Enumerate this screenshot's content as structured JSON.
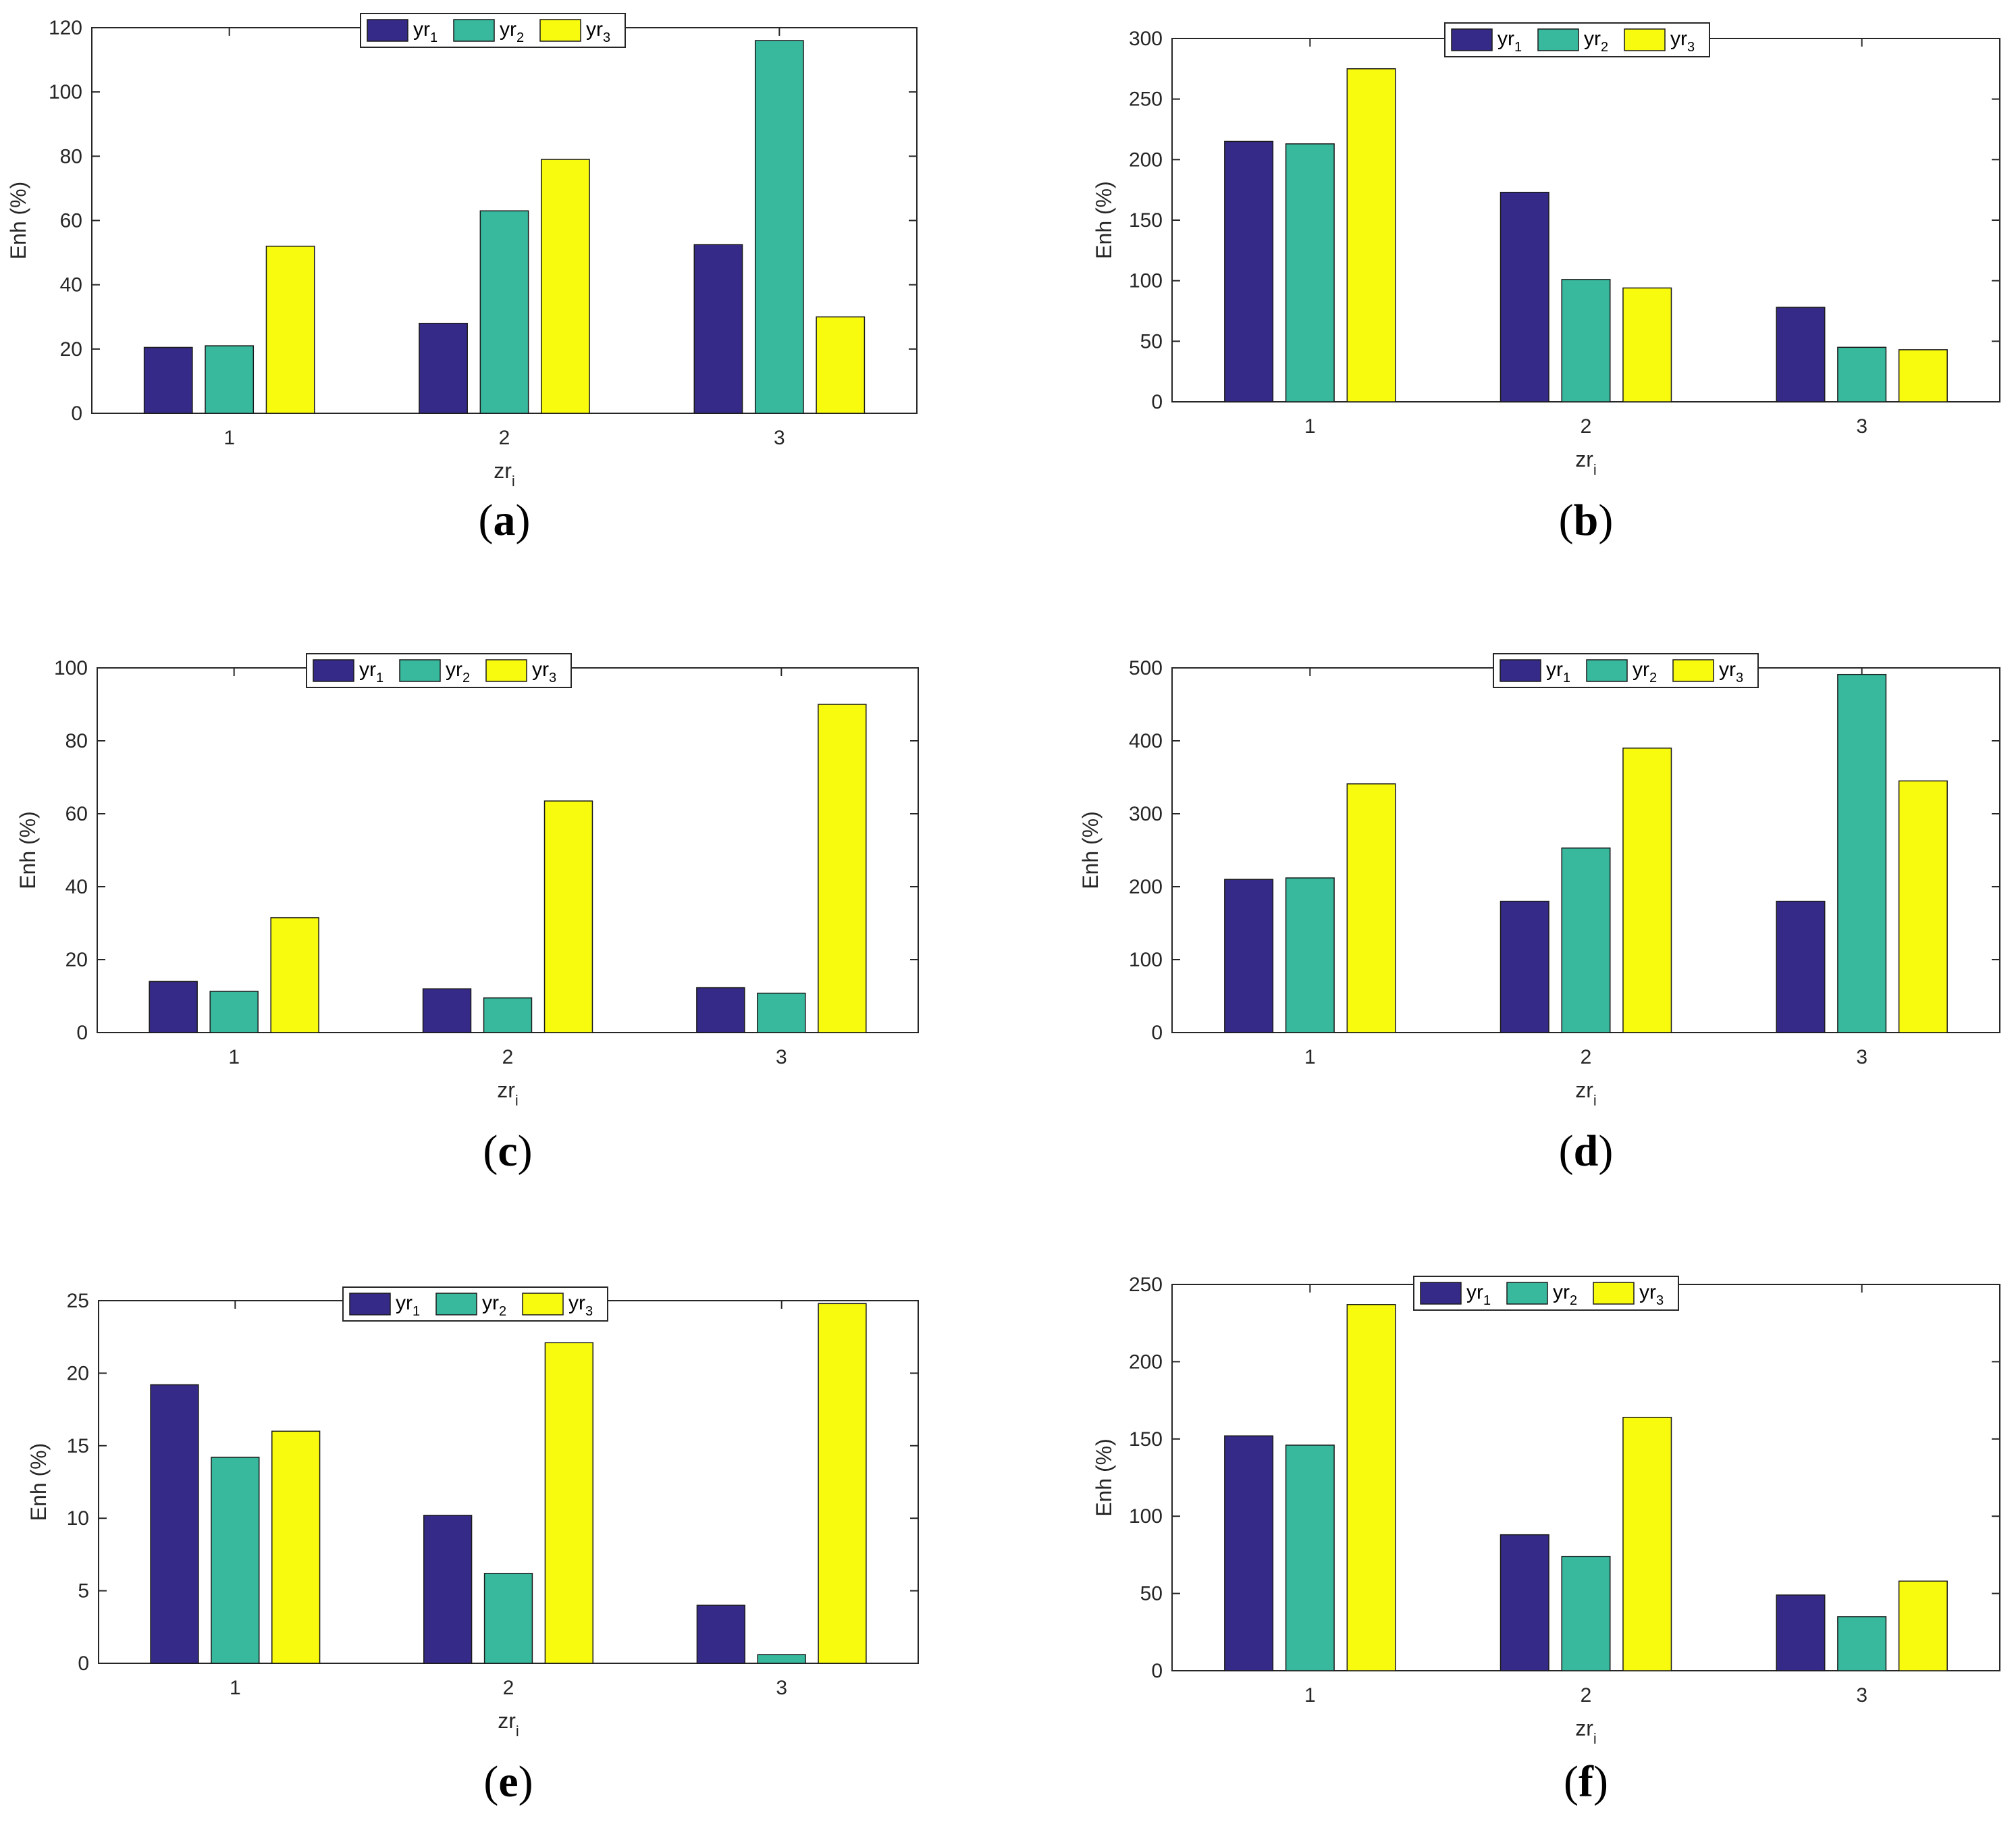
{
  "figure": {
    "series_colors": {
      "yr1": "#352a87",
      "yr2": "#38b99e",
      "yr3": "#f9fb0e"
    }
  },
  "chart_data": [
    {
      "type": "bar",
      "panel_label": "(a)",
      "panel_letter": "a",
      "categories": [
        "1",
        "2",
        "3"
      ],
      "xlabel": "zr",
      "xlabel_sub": "i",
      "ylabel": "Enh (%)",
      "ylim": [
        0,
        120
      ],
      "yticks": [
        0,
        20,
        40,
        60,
        80,
        100,
        120
      ],
      "legend": "top-center",
      "series": [
        {
          "name": "yr",
          "sub": "1",
          "values": [
            20.5,
            28,
            52.5
          ]
        },
        {
          "name": "yr",
          "sub": "2",
          "values": [
            21,
            63,
            116
          ]
        },
        {
          "name": "yr",
          "sub": "3",
          "values": [
            52,
            79,
            30
          ]
        }
      ]
    },
    {
      "type": "bar",
      "panel_label": "(b)",
      "panel_letter": "b",
      "categories": [
        "1",
        "2",
        "3"
      ],
      "xlabel": "zr",
      "xlabel_sub": "i",
      "ylabel": "Enh (%)",
      "ylim": [
        0,
        300
      ],
      "yticks": [
        0,
        50,
        100,
        150,
        200,
        250,
        300
      ],
      "legend": "top-center",
      "series": [
        {
          "name": "yr",
          "sub": "1",
          "values": [
            215,
            173,
            78
          ]
        },
        {
          "name": "yr",
          "sub": "2",
          "values": [
            213,
            101,
            45
          ]
        },
        {
          "name": "yr",
          "sub": "3",
          "values": [
            275,
            94,
            43
          ]
        }
      ]
    },
    {
      "type": "bar",
      "panel_label": "(c)",
      "panel_letter": "c",
      "categories": [
        "1",
        "2",
        "3"
      ],
      "xlabel": "zr",
      "xlabel_sub": "i",
      "ylabel": "Enh (%)",
      "ylim": [
        0,
        100
      ],
      "yticks": [
        0,
        20,
        40,
        60,
        80,
        100
      ],
      "legend": "top-center",
      "series": [
        {
          "name": "yr",
          "sub": "1",
          "values": [
            14,
            12,
            12.3
          ]
        },
        {
          "name": "yr",
          "sub": "2",
          "values": [
            11.3,
            9.5,
            10.8
          ]
        },
        {
          "name": "yr",
          "sub": "3",
          "values": [
            31.5,
            63.5,
            90
          ]
        }
      ]
    },
    {
      "type": "bar",
      "panel_label": "(d)",
      "panel_letter": "d",
      "categories": [
        "1",
        "2",
        "3"
      ],
      "xlabel": "zr",
      "xlabel_sub": "i",
      "ylabel": "Enh (%)",
      "ylim": [
        0,
        500
      ],
      "yticks": [
        0,
        100,
        200,
        300,
        400,
        500
      ],
      "legend": "top-center",
      "series": [
        {
          "name": "yr",
          "sub": "1",
          "values": [
            210,
            180,
            180
          ]
        },
        {
          "name": "yr",
          "sub": "2",
          "values": [
            212,
            253,
            491
          ]
        },
        {
          "name": "yr",
          "sub": "3",
          "values": [
            341,
            390,
            345
          ]
        }
      ]
    },
    {
      "type": "bar",
      "panel_label": "(e)",
      "panel_letter": "e",
      "categories": [
        "1",
        "2",
        "3"
      ],
      "xlabel": "zr",
      "xlabel_sub": "i",
      "ylabel": "Enh (%)",
      "ylim": [
        0,
        25
      ],
      "yticks": [
        0,
        5,
        10,
        15,
        20,
        25
      ],
      "legend": "top-center",
      "series": [
        {
          "name": "yr",
          "sub": "1",
          "values": [
            19.2,
            10.2,
            4
          ]
        },
        {
          "name": "yr",
          "sub": "2",
          "values": [
            14.2,
            6.2,
            0.6
          ]
        },
        {
          "name": "yr",
          "sub": "3",
          "values": [
            16,
            22.1,
            24.8
          ]
        }
      ]
    },
    {
      "type": "bar",
      "panel_label": "(f)",
      "panel_letter": "f",
      "categories": [
        "1",
        "2",
        "3"
      ],
      "xlabel": "zr",
      "xlabel_sub": "i",
      "ylabel": "Enh (%)",
      "ylim": [
        0,
        250
      ],
      "yticks": [
        0,
        50,
        100,
        150,
        200,
        250
      ],
      "legend": "top-center",
      "series": [
        {
          "name": "yr",
          "sub": "1",
          "values": [
            152,
            88,
            49
          ]
        },
        {
          "name": "yr",
          "sub": "2",
          "values": [
            146,
            74,
            35
          ]
        },
        {
          "name": "yr",
          "sub": "3",
          "values": [
            237,
            164,
            58
          ]
        }
      ]
    }
  ]
}
